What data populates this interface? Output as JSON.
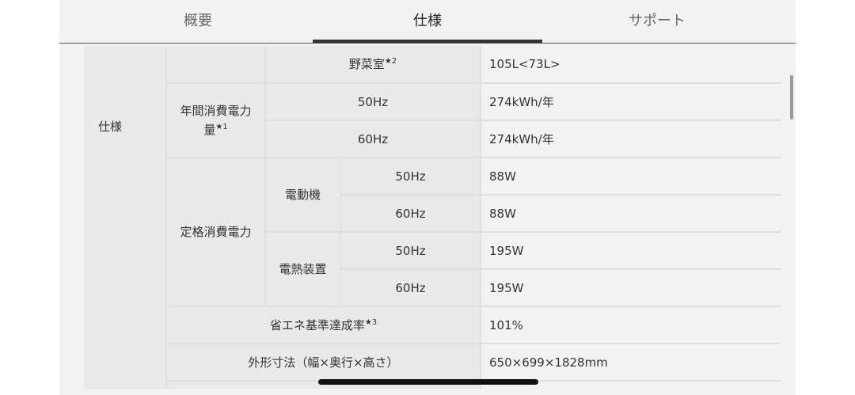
{
  "tabs": [
    {
      "label": "概要"
    },
    {
      "label": "仕様",
      "active": true
    },
    {
      "label": "サポート"
    }
  ],
  "section": "仕様",
  "rows": {
    "vegetable": {
      "label": "野菜室",
      "note": "★2",
      "value": "105L<73L>"
    },
    "annual": {
      "label": "年間消費電力量",
      "note": "★1",
      "hz50": "50Hz",
      "v50": "274kWh/年",
      "hz60": "60Hz",
      "v60": "274kWh/年"
    },
    "rated": {
      "label": "定格消費電力",
      "motor": "電動機",
      "motor50": "50Hz",
      "motor50v": "88W",
      "motor60": "60Hz",
      "motor60v": "88W",
      "heater": "電熱装置",
      "heater50": "50Hz",
      "heater50v": "195W",
      "heater60": "60Hz",
      "heater60v": "195W"
    },
    "energy": {
      "label": "省エネ基準達成率",
      "note": "★3",
      "value": "101%"
    },
    "dims": {
      "label": "外形寸法（幅×奥行×高さ）",
      "value": "650×699×1828mm"
    }
  }
}
